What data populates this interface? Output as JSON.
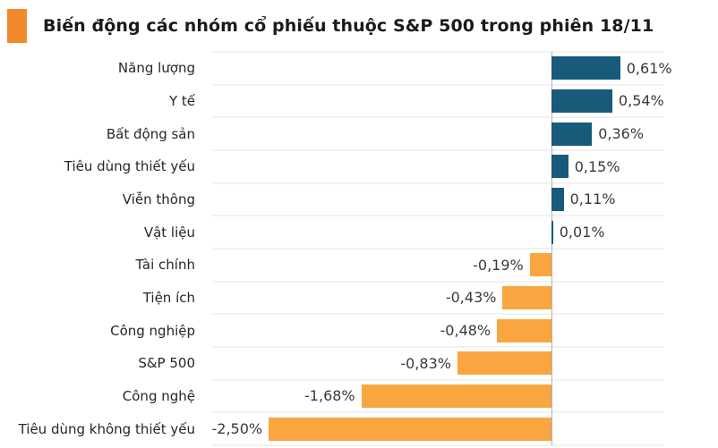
{
  "chart_data": {
    "type": "bar",
    "orientation": "horizontal",
    "title": "Biến động các nhóm cổ phiếu thuộc S&P 500 trong phiên 18/11",
    "categories": [
      "Năng lượng",
      "Y tế",
      "Bất động sản",
      "Tiêu dùng thiết yếu",
      "Viễn thông",
      "Vật liệu",
      "Tài chính",
      "Tiện ích",
      "Công nghiệp",
      "S&P 500",
      "Công nghệ",
      "Tiêu dùng không thiết yếu"
    ],
    "values": [
      0.61,
      0.54,
      0.36,
      0.15,
      0.11,
      0.01,
      -0.19,
      -0.43,
      -0.48,
      -0.83,
      -1.68,
      -2.5
    ],
    "value_labels": [
      "0,61%",
      "0,54%",
      "0,36%",
      "0,15%",
      "0,11%",
      "0,01%",
      "-0,19%",
      "-0,43%",
      "-0,48%",
      "-0,83%",
      "-1,68%",
      "-2,50%"
    ],
    "xlabel": "",
    "ylabel": "",
    "xlim": [
      -3.0,
      1.0
    ],
    "grid": "row-separator-lines",
    "legend": "none",
    "colors": {
      "positive_bar": "#175a7a",
      "negative_bar": "#f9a640",
      "title_marker": "#f18a2c",
      "row_gridline": "#f2f2f2",
      "zero_axis": "#a9b3ba",
      "title_text": "#1a1a1a",
      "category_text": "#262626",
      "value_text": "#3a3a3a",
      "background": "#ffffff"
    }
  }
}
